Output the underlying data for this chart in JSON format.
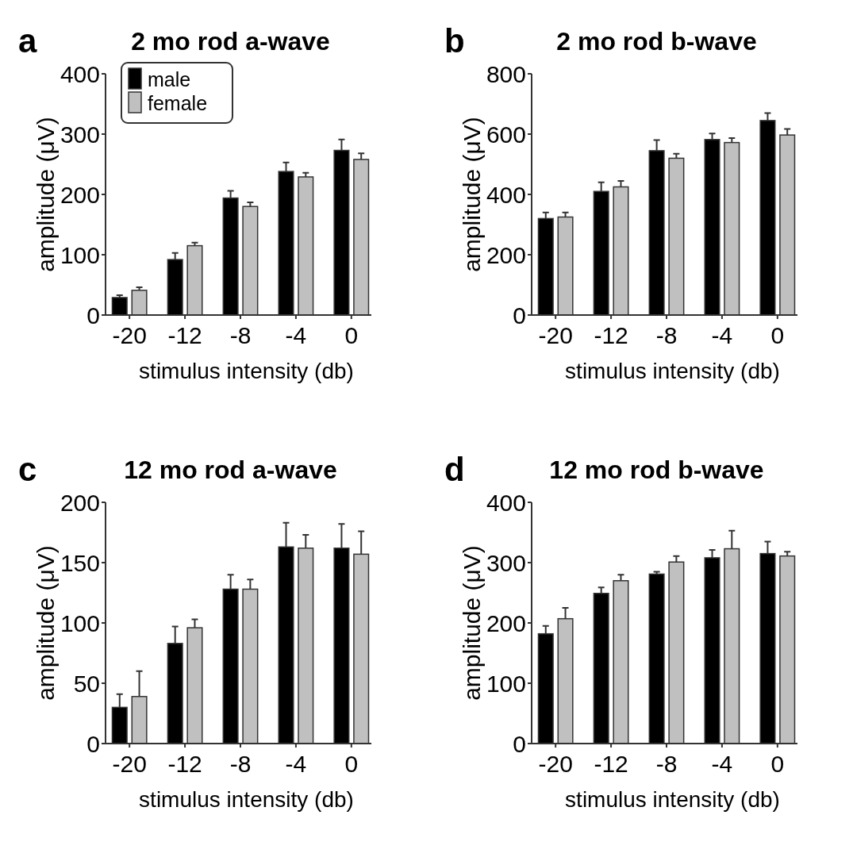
{
  "chart_data": [
    {
      "type": "bar",
      "title": "2 mo rod a-wave",
      "xlabel": "stimulus intensity (db)",
      "ylabel": "amplitude  (μV)",
      "annotations": [
        "a"
      ],
      "categories": [
        "-20",
        "-12",
        "-8",
        "-4",
        "0"
      ],
      "ylim": [
        0,
        400
      ],
      "yticks": [
        0,
        100,
        200,
        300,
        400
      ],
      "legend": "top left",
      "series": [
        {
          "name": "male",
          "color": "#000000",
          "values": [
            29,
            92,
            194,
            238,
            273
          ],
          "errors": [
            [
              29,
              33
            ],
            [
              92,
              103
            ],
            [
              194,
              206
            ],
            [
              238,
              253
            ],
            [
              273,
              291
            ]
          ]
        },
        {
          "name": "female",
          "color": "#c0c0c0",
          "values": [
            41,
            115,
            180,
            229,
            258
          ],
          "errors": [
            [
              41,
              46
            ],
            [
              115,
              120
            ],
            [
              180,
              187
            ],
            [
              229,
              236
            ],
            [
              258,
              268
            ]
          ]
        }
      ]
    },
    {
      "type": "bar",
      "title": "2 mo rod b-wave",
      "xlabel": "stimulus intensity (db)",
      "ylabel": "amplitude  (μV)",
      "annotations": [
        "b"
      ],
      "categories": [
        "-20",
        "-12",
        "-8",
        "-4",
        "0"
      ],
      "ylim": [
        0,
        800
      ],
      "yticks": [
        0,
        200,
        400,
        600,
        800
      ],
      "series": [
        {
          "color": "#000000",
          "values": [
            320,
            410,
            545,
            582,
            645
          ],
          "errors": [
            [
              320,
              340
            ],
            [
              410,
              440
            ],
            [
              545,
              580
            ],
            [
              582,
              602
            ],
            [
              645,
              670
            ]
          ]
        },
        {
          "color": "#c0c0c0",
          "values": [
            325,
            425,
            520,
            572,
            597
          ],
          "errors": [
            [
              325,
              340
            ],
            [
              425,
              445
            ],
            [
              520,
              535
            ],
            [
              572,
              587
            ],
            [
              597,
              617
            ]
          ]
        }
      ]
    },
    {
      "type": "bar",
      "title": "12 mo rod a-wave",
      "xlabel": "stimulus intensity (db)",
      "ylabel": "amplitude  (μV)",
      "annotations": [
        "c"
      ],
      "categories": [
        "-20",
        "-12",
        "-8",
        "-4",
        "0"
      ],
      "ylim": [
        0,
        200
      ],
      "yticks": [
        0,
        50,
        100,
        150,
        200
      ],
      "series": [
        {
          "color": "#000000",
          "values": [
            30,
            83,
            128,
            163,
            162
          ],
          "errors": [
            [
              30,
              41
            ],
            [
              83,
              97
            ],
            [
              128,
              140
            ],
            [
              163,
              183
            ],
            [
              162,
              182
            ]
          ]
        },
        {
          "color": "#c0c0c0",
          "values": [
            39,
            96,
            128,
            162,
            157
          ],
          "errors": [
            [
              39,
              60
            ],
            [
              96,
              103
            ],
            [
              128,
              136
            ],
            [
              162,
              173
            ],
            [
              157,
              176
            ]
          ]
        }
      ]
    },
    {
      "type": "bar",
      "title": "12 mo rod b-wave",
      "xlabel": "stimulus intensity (db)",
      "ylabel": "amplitude  (μV)",
      "annotations": [
        "d"
      ],
      "categories": [
        "-20",
        "-12",
        "-8",
        "-4",
        "0"
      ],
      "ylim": [
        0,
        400
      ],
      "yticks": [
        0,
        100,
        200,
        300,
        400
      ],
      "series": [
        {
          "color": "#000000",
          "values": [
            182,
            249,
            281,
            308,
            315
          ],
          "errors": [
            [
              182,
              195
            ],
            [
              249,
              259
            ],
            [
              281,
              285
            ],
            [
              308,
              321
            ],
            [
              315,
              335
            ]
          ]
        },
        {
          "color": "#c0c0c0",
          "values": [
            207,
            270,
            301,
            323,
            311
          ],
          "errors": [
            [
              207,
              225
            ],
            [
              270,
              280
            ],
            [
              301,
              311
            ],
            [
              323,
              353
            ],
            [
              311,
              318
            ]
          ]
        }
      ]
    }
  ]
}
